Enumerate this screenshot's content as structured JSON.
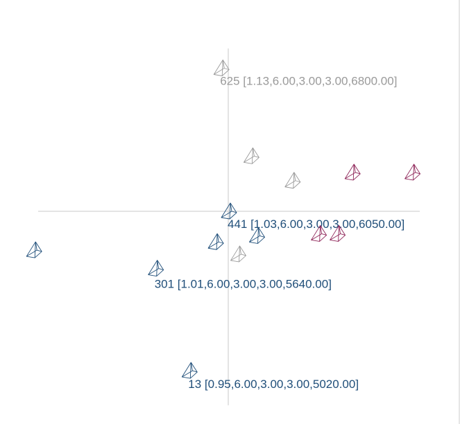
{
  "chart_data": {
    "type": "scatter",
    "title": "",
    "xlabel": "",
    "ylabel": "",
    "colors": {
      "navy": "#1f4e79",
      "gray": "#9a9a9a",
      "magenta": "#8e2458",
      "axis": "#c8c8c8"
    },
    "marker": "wireframe-pyramid-glyph",
    "points": [
      {
        "id": "625",
        "x": -0.2,
        "y": 3.5,
        "color": "gray",
        "label": "625 [1.13,6.00,3.00,3.00,6800.00]"
      },
      {
        "id": "p2",
        "x": 0.6,
        "y": 1.35,
        "color": "gray"
      },
      {
        "id": "p3",
        "x": 1.7,
        "y": 0.75,
        "color": "gray"
      },
      {
        "id": "p4",
        "x": 3.3,
        "y": 0.95,
        "color": "magenta"
      },
      {
        "id": "p5",
        "x": 4.9,
        "y": 0.95,
        "color": "magenta"
      },
      {
        "id": "441",
        "x": 0.0,
        "y": 0.0,
        "color": "navy",
        "label": "441 [1.03,6.00,3.00,3.00,6050.00]"
      },
      {
        "id": "p7",
        "x": 2.4,
        "y": -0.55,
        "color": "magenta"
      },
      {
        "id": "p8",
        "x": 2.9,
        "y": -0.55,
        "color": "magenta"
      },
      {
        "id": "p9",
        "x": 0.75,
        "y": -0.6,
        "color": "navy"
      },
      {
        "id": "p10",
        "x": -0.35,
        "y": -0.75,
        "color": "navy"
      },
      {
        "id": "p11",
        "x": 0.25,
        "y": -1.05,
        "color": "gray"
      },
      {
        "id": "p12",
        "x": -5.2,
        "y": -0.95,
        "color": "navy"
      },
      {
        "id": "301",
        "x": -1.95,
        "y": -1.4,
        "color": "navy",
        "label": "301 [1.01,6.00,3.00,3.00,5640.00]"
      },
      {
        "id": "13",
        "x": -1.05,
        "y": -3.9,
        "color": "navy",
        "label": "13 [0.95,6.00,3.00,3.00,5020.00]"
      }
    ]
  }
}
